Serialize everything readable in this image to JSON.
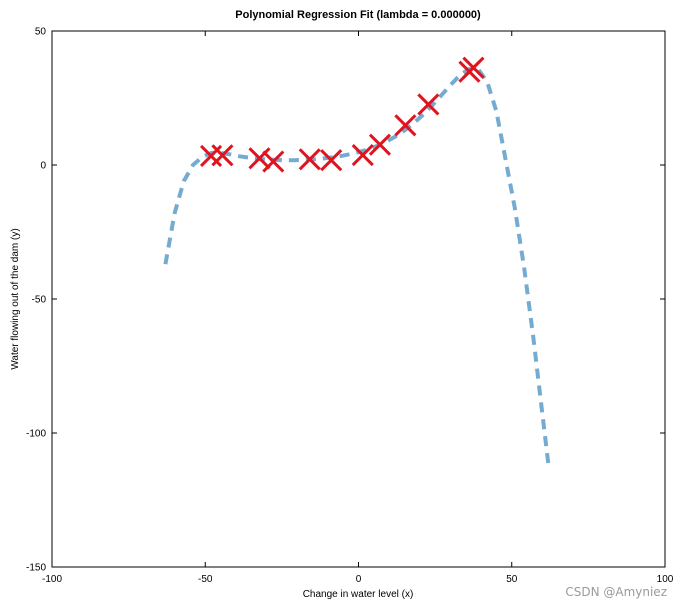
{
  "chart_data": {
    "type": "scatter",
    "title": "Polynomial Regression Fit (lambda = 0.000000)",
    "xlabel": "Change in water level (x)",
    "ylabel": "Water flowing out of the dam (y)",
    "xlim": [
      -100,
      100
    ],
    "ylim": [
      -150,
      50
    ],
    "xticks": [
      -100,
      -50,
      0,
      50,
      100
    ],
    "yticks": [
      -150,
      -100,
      -50,
      0,
      50
    ],
    "xtick_labels": [
      "-100",
      "-50",
      "0",
      "50",
      "100"
    ],
    "ytick_labels": [
      "-150",
      "-100",
      "-50",
      "0",
      "50"
    ],
    "grid": false,
    "series": [
      {
        "kind": "scatter",
        "marker": "x",
        "color": "#e0141e",
        "x": [
          -48.1,
          -44.4,
          -32.3,
          -27.8,
          -15.9,
          -8.9,
          1.4,
          7.0,
          15.3,
          22.8,
          36.2,
          37.5
        ],
        "y": [
          3.4,
          3.6,
          2.5,
          1.3,
          2.1,
          1.8,
          3.7,
          7.6,
          14.8,
          22.6,
          34.8,
          36.3
        ]
      },
      {
        "kind": "line",
        "style": "dashed",
        "color": "#1f77b4",
        "x": [
          -63,
          -60,
          -57,
          -54,
          -51,
          -48,
          -45,
          -42,
          -39,
          -36,
          -33,
          -30,
          -27,
          -24,
          -21,
          -18,
          -15,
          -12,
          -9,
          -6,
          -3,
          0,
          3,
          6,
          9,
          12,
          15,
          18,
          21,
          24,
          27,
          30,
          33,
          36,
          39,
          42,
          45,
          48,
          51,
          54,
          57,
          60,
          62
        ],
        "y": [
          -37,
          -18,
          -6,
          0,
          3,
          4.5,
          4.5,
          4,
          3.3,
          2.8,
          2.4,
          2.1,
          1.9,
          1.8,
          1.8,
          1.9,
          2.1,
          2.4,
          2.8,
          3.3,
          4,
          4.8,
          5.8,
          7.1,
          8.7,
          10.6,
          12.9,
          15.6,
          18.7,
          22.2,
          26.0,
          29.8,
          33.4,
          35.8,
          35.8,
          31,
          20,
          2,
          -16,
          -38,
          -64,
          -93,
          -112
        ]
      }
    ],
    "watermark": "CSDN @Amyniez"
  }
}
